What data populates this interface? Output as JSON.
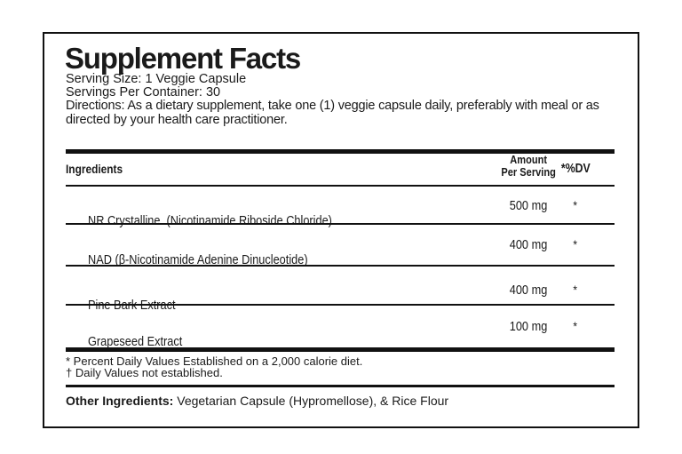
{
  "panel": {
    "title": "Supplement Facts",
    "serving_size_line": "Serving Size: 1 Veggie Capsule",
    "servings_line": "Servings Per Container: 30",
    "directions_line": "Directions: As a dietary supplement, take one (1) veggie capsule daily, preferably with meal or as directed by your health care practitioner.",
    "table": {
      "ingredients_header": "Ingredients",
      "amount_header_line1": "Amount",
      "amount_header_line2": "Per Serving",
      "dv_header": "*%DV",
      "rows": [
        {
          "name": "NR Crystalline  (Nicotinamide Riboside Chloride)",
          "amount": "500 mg",
          "dv": "*"
        },
        {
          "name": "NAD (β-Nicotinamide Adenine Dinucleotide)",
          "amount": "400 mg",
          "dv": "*"
        },
        {
          "name": "Pine Bark Extract",
          "amount": "400 mg",
          "dv": "*"
        },
        {
          "name": "Grapeseed Extract",
          "amount": "100 mg",
          "dv": "*"
        }
      ]
    },
    "footnotes": [
      "* Percent Daily Values Established on a 2,000 calorie diet.",
      "† Daily Values not established."
    ],
    "other_ingredients": {
      "label": "Other Ingredients:",
      "text": " Vegetarian Capsule (Hypromellose), & Rice Flour"
    },
    "colors": {
      "ink": "#1a1a1a",
      "border": "#111111",
      "background": "#ffffff"
    }
  }
}
